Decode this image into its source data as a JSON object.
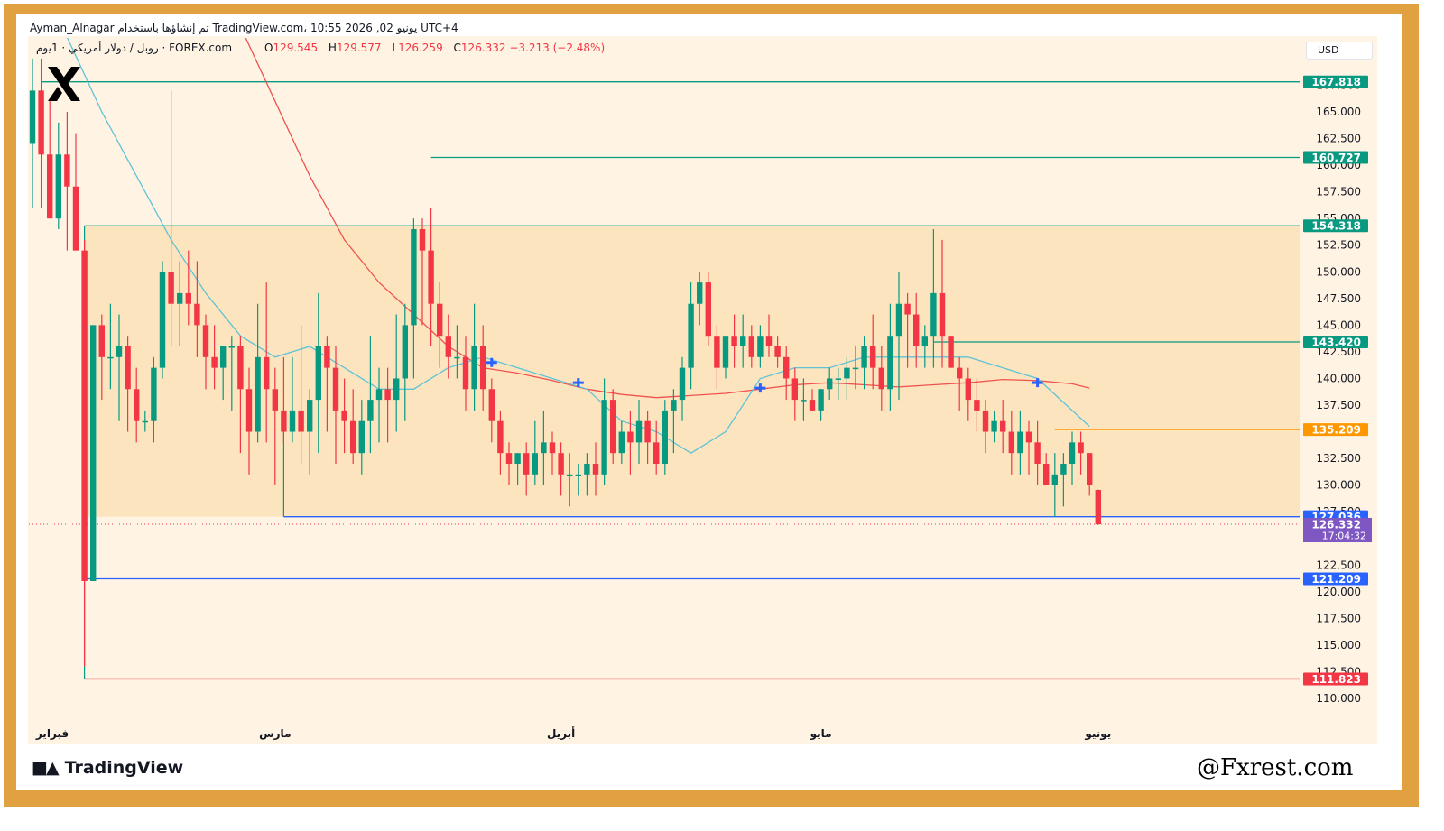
{
  "header": {
    "author": "Ayman_Alnagar",
    "made_with": "تم إنشاؤها باستخدام TradingView.com، 10:55 2026 ,02 يونيو UTC+4",
    "symbol_line": "روبل / دولار أمريكي · 1يوم · FOREX.com",
    "ohlc": [
      {
        "key": "O",
        "value": "129.545"
      },
      {
        "key": "H",
        "value": "129.577"
      },
      {
        "key": "L",
        "value": "126.259"
      },
      {
        "key": "C",
        "value": "126.332 −3.213 (−2.48%)"
      }
    ],
    "currency_button": "USD"
  },
  "branding": {
    "tradingview": "TradingView",
    "watermark": "@Fxrest.com",
    "logo_icon": "x-brand-icon"
  },
  "colors": {
    "up": "#089981",
    "down": "#f23645",
    "ma_fast": "#5ec3d6",
    "ma_slow": "#ef5350",
    "level_green": "#089981",
    "level_blue": "#2962ff",
    "level_red": "#f23645",
    "level_orange": "#ff9800",
    "price_badge": "#7e57c2",
    "box_fill": "#fce0b8"
  },
  "chart_data": {
    "type": "candlestick",
    "ylim": [
      107.5,
      172.5
    ],
    "y_ticks": [
      "110.000",
      "112.500",
      "115.000",
      "117.500",
      "120.000",
      "122.500",
      "125.000",
      "127.500",
      "130.000",
      "132.500",
      "135.000",
      "137.500",
      "140.000",
      "142.500",
      "145.000",
      "147.500",
      "150.000",
      "152.500",
      "155.000",
      "157.500",
      "160.000",
      "162.500",
      "165.000",
      "167.500"
    ],
    "x_labels": [
      {
        "label": "فبراير",
        "index": 0
      },
      {
        "label": "مارس",
        "index": 28
      },
      {
        "label": "أبريل",
        "index": 61
      },
      {
        "label": "مايو",
        "index": 91
      },
      {
        "label": "يونيو",
        "index": 123
      }
    ],
    "candles": [
      [
        162,
        170,
        156,
        167
      ],
      [
        167,
        170,
        156,
        161
      ],
      [
        161,
        166,
        155,
        155
      ],
      [
        155,
        164,
        154,
        161
      ],
      [
        161,
        165,
        152,
        158
      ],
      [
        158,
        163,
        152,
        152
      ],
      [
        152,
        153,
        113,
        121
      ],
      [
        121,
        145,
        121,
        145
      ],
      [
        145,
        146,
        138,
        142
      ],
      [
        142,
        147,
        139,
        142
      ],
      [
        142,
        146,
        136,
        143
      ],
      [
        143,
        144,
        135,
        139
      ],
      [
        139,
        141,
        134,
        136
      ],
      [
        136,
        137,
        135,
        136
      ],
      [
        136,
        142,
        134,
        141
      ],
      [
        141,
        151,
        140,
        150
      ],
      [
        150,
        167,
        143,
        147
      ],
      [
        147,
        151,
        143,
        148
      ],
      [
        148,
        152,
        145,
        147
      ],
      [
        147,
        151,
        142,
        145
      ],
      [
        145,
        146,
        139,
        142
      ],
      [
        142,
        145,
        139,
        141
      ],
      [
        141,
        143,
        138,
        143
      ],
      [
        143,
        144,
        137,
        143
      ],
      [
        143,
        144,
        133,
        139
      ],
      [
        139,
        141,
        131,
        135
      ],
      [
        135,
        147,
        134,
        142
      ],
      [
        142,
        149,
        134,
        139
      ],
      [
        139,
        141,
        130,
        137
      ],
      [
        137,
        142,
        134,
        135
      ],
      [
        135,
        142,
        134,
        137
      ],
      [
        137,
        145,
        132,
        135
      ],
      [
        135,
        139,
        131,
        138
      ],
      [
        138,
        148,
        133,
        143
      ],
      [
        143,
        144,
        135,
        141
      ],
      [
        141,
        143,
        132,
        137
      ],
      [
        137,
        140,
        133,
        136
      ],
      [
        136,
        139,
        132,
        133
      ],
      [
        133,
        138,
        131,
        136
      ],
      [
        136,
        144,
        133,
        138
      ],
      [
        138,
        141,
        134,
        139
      ],
      [
        139,
        141,
        134,
        138
      ],
      [
        138,
        146,
        135,
        140
      ],
      [
        140,
        147,
        136,
        145
      ],
      [
        145,
        155,
        140,
        154
      ],
      [
        154,
        155,
        145,
        152
      ],
      [
        152,
        156,
        143,
        147
      ],
      [
        147,
        149,
        141,
        144
      ],
      [
        144,
        146,
        140,
        142
      ],
      [
        142,
        145,
        140,
        142
      ],
      [
        142,
        144,
        137,
        139
      ],
      [
        139,
        147,
        137,
        143
      ],
      [
        143,
        145,
        137,
        139
      ],
      [
        139,
        140,
        134,
        136
      ],
      [
        136,
        137,
        131,
        133
      ],
      [
        133,
        134,
        130,
        132
      ],
      [
        132,
        133,
        130,
        133
      ],
      [
        133,
        134,
        129,
        131
      ],
      [
        131,
        136,
        130,
        133
      ],
      [
        133,
        137,
        130,
        134
      ],
      [
        134,
        135,
        131,
        133
      ],
      [
        133,
        134,
        129,
        131
      ],
      [
        131,
        133,
        128,
        131
      ],
      [
        131,
        132,
        129,
        131
      ],
      [
        131,
        133,
        129,
        132
      ],
      [
        132,
        134,
        129,
        131
      ],
      [
        131,
        140,
        130,
        138
      ],
      [
        138,
        139,
        132,
        133
      ],
      [
        133,
        136,
        132,
        135
      ],
      [
        135,
        137,
        131,
        134
      ],
      [
        134,
        138,
        132,
        136
      ],
      [
        136,
        137,
        132,
        134
      ],
      [
        134,
        136,
        131,
        132
      ],
      [
        132,
        138,
        131,
        137
      ],
      [
        137,
        139,
        133,
        138
      ],
      [
        138,
        142,
        136,
        141
      ],
      [
        141,
        149,
        139,
        147
      ],
      [
        147,
        150,
        145,
        149
      ],
      [
        149,
        150,
        143,
        144
      ],
      [
        144,
        145,
        139,
        141
      ],
      [
        141,
        144,
        140,
        144
      ],
      [
        144,
        146,
        141,
        143
      ],
      [
        143,
        146,
        141,
        144
      ],
      [
        144,
        145,
        141,
        142
      ],
      [
        142,
        145,
        141,
        144
      ],
      [
        144,
        146,
        142,
        143
      ],
      [
        143,
        144,
        141,
        142
      ],
      [
        142,
        143,
        138,
        140
      ],
      [
        140,
        141,
        136,
        138
      ],
      [
        138,
        140,
        136,
        138
      ],
      [
        138,
        139,
        137,
        137
      ],
      [
        137,
        139,
        136,
        139
      ],
      [
        139,
        141,
        138,
        140
      ],
      [
        140,
        141,
        138,
        140
      ],
      [
        140,
        142,
        138,
        141
      ],
      [
        141,
        143,
        139,
        141
      ],
      [
        141,
        144,
        139,
        143
      ],
      [
        143,
        146,
        139,
        141
      ],
      [
        141,
        143,
        137,
        139
      ],
      [
        139,
        147,
        137,
        144
      ],
      [
        144,
        150,
        138,
        147
      ],
      [
        147,
        148,
        141,
        146
      ],
      [
        146,
        148,
        141,
        143
      ],
      [
        143,
        145,
        141,
        144
      ],
      [
        144,
        154,
        141,
        148
      ],
      [
        148,
        153,
        141,
        144
      ],
      [
        144,
        144,
        141,
        141
      ],
      [
        141,
        142,
        137,
        140
      ],
      [
        140,
        141,
        136,
        138
      ],
      [
        138,
        140,
        135,
        137
      ],
      [
        137,
        138,
        133,
        135
      ],
      [
        135,
        137,
        134,
        136
      ],
      [
        136,
        138,
        133,
        135
      ],
      [
        135,
        137,
        131,
        133
      ],
      [
        133,
        137,
        131,
        135
      ],
      [
        135,
        136,
        131,
        134
      ],
      [
        134,
        136,
        130,
        132
      ],
      [
        132,
        133,
        130,
        130
      ],
      [
        130,
        133,
        127,
        131
      ],
      [
        131,
        133,
        128,
        132
      ],
      [
        132,
        135,
        130,
        134
      ],
      [
        134,
        135,
        131,
        133
      ],
      [
        133,
        133,
        129,
        130
      ],
      [
        129.545,
        129.577,
        126.259,
        126.332
      ]
    ],
    "ma_fast": [
      [
        4,
        172
      ],
      [
        8,
        165
      ],
      [
        12,
        159
      ],
      [
        16,
        153
      ],
      [
        20,
        148
      ],
      [
        24,
        144
      ],
      [
        28,
        142
      ],
      [
        32,
        143
      ],
      [
        36,
        141
      ],
      [
        40,
        139
      ],
      [
        44,
        139
      ],
      [
        48,
        141
      ],
      [
        52,
        142
      ],
      [
        56,
        141
      ],
      [
        60,
        140
      ],
      [
        64,
        139
      ],
      [
        68,
        136
      ],
      [
        72,
        135
      ],
      [
        76,
        133
      ],
      [
        80,
        135
      ],
      [
        84,
        140
      ],
      [
        88,
        141
      ],
      [
        92,
        141
      ],
      [
        96,
        142
      ],
      [
        100,
        142
      ],
      [
        104,
        142
      ],
      [
        108,
        142
      ],
      [
        112,
        141
      ],
      [
        116,
        140
      ],
      [
        120,
        137
      ],
      [
        122,
        135.5
      ]
    ],
    "ma_slow": [
      [
        24,
        173
      ],
      [
        28,
        166
      ],
      [
        32,
        159
      ],
      [
        36,
        153
      ],
      [
        40,
        149
      ],
      [
        44,
        146
      ],
      [
        48,
        143
      ],
      [
        52,
        141
      ],
      [
        56,
        140.5
      ],
      [
        60,
        139.8
      ],
      [
        64,
        139
      ],
      [
        68,
        138.5
      ],
      [
        72,
        138.2
      ],
      [
        76,
        138.4
      ],
      [
        80,
        138.6
      ],
      [
        84,
        139
      ],
      [
        88,
        139.4
      ],
      [
        92,
        139.6
      ],
      [
        96,
        139.4
      ],
      [
        100,
        139.2
      ],
      [
        104,
        139.4
      ],
      [
        108,
        139.6
      ],
      [
        112,
        139.9
      ],
      [
        116,
        139.8
      ],
      [
        120,
        139.5
      ],
      [
        122,
        139.1
      ]
    ],
    "ma_cross_markers": [
      [
        53,
        141.5
      ],
      [
        63,
        139.6
      ],
      [
        84,
        139.1
      ],
      [
        116,
        139.6
      ]
    ],
    "levels": [
      {
        "price": "167.818",
        "value": 167.818,
        "color": "green",
        "from_index": 1
      },
      {
        "price": "160.727",
        "value": 160.727,
        "color": "green",
        "from_index": 46
      },
      {
        "price": "154.318",
        "value": 154.318,
        "color": "green",
        "from_index": 6
      },
      {
        "price": "143.420",
        "value": 143.42,
        "color": "green",
        "from_index": 104
      },
      {
        "price": "135.209",
        "value": 135.209,
        "color": "orange",
        "from_index": 118
      },
      {
        "price": "127.036",
        "value": 127.036,
        "color": "blue",
        "from_index": 29
      },
      {
        "price": "121.209",
        "value": 121.209,
        "color": "blue",
        "from_index": 6
      },
      {
        "price": "111.823",
        "value": 111.823,
        "color": "red",
        "from_index": 6
      }
    ],
    "range_box": {
      "top": 154.318,
      "bottom": 127.036,
      "from_index": 6
    },
    "last_price": {
      "price": "126.332",
      "countdown": "17:04:32",
      "value": 126.332
    }
  }
}
